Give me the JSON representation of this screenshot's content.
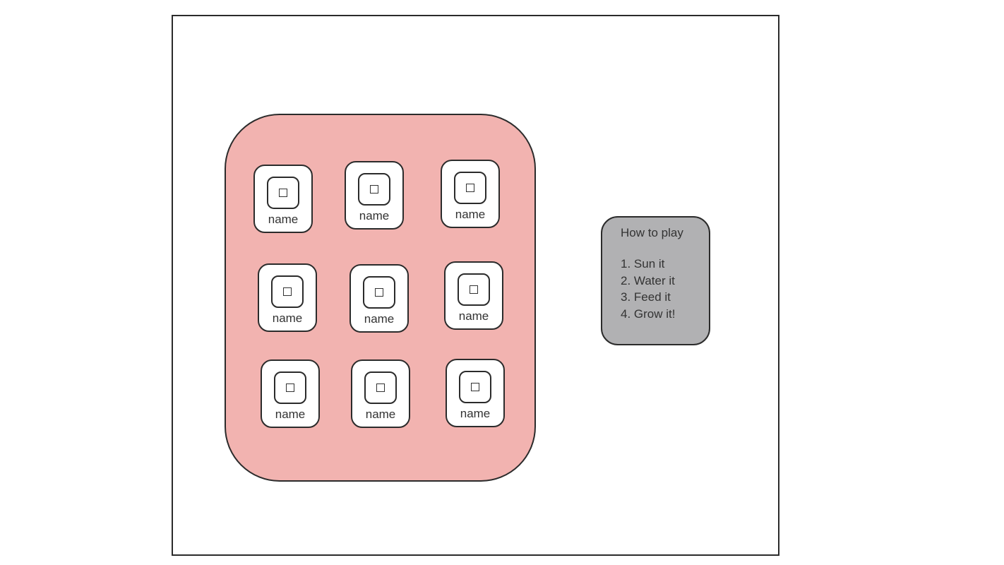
{
  "colors": {
    "board": "#f2b3b0",
    "panel": "#b1b1b3",
    "stroke": "#2b2b2b"
  },
  "grid": {
    "slots": [
      {
        "label": "name",
        "icon": "square-placeholder-icon"
      },
      {
        "label": "name",
        "icon": "square-placeholder-icon"
      },
      {
        "label": "name",
        "icon": "square-placeholder-icon"
      },
      {
        "label": "name",
        "icon": "square-placeholder-icon"
      },
      {
        "label": "name",
        "icon": "square-placeholder-icon"
      },
      {
        "label": "name",
        "icon": "square-placeholder-icon"
      },
      {
        "label": "name",
        "icon": "square-placeholder-icon"
      },
      {
        "label": "name",
        "icon": "square-placeholder-icon"
      },
      {
        "label": "name",
        "icon": "square-placeholder-icon"
      }
    ]
  },
  "how_to_play": {
    "title": "How to play",
    "steps": [
      "1. Sun it",
      "2. Water it",
      "3. Feed it",
      "4. Grow it!"
    ]
  }
}
